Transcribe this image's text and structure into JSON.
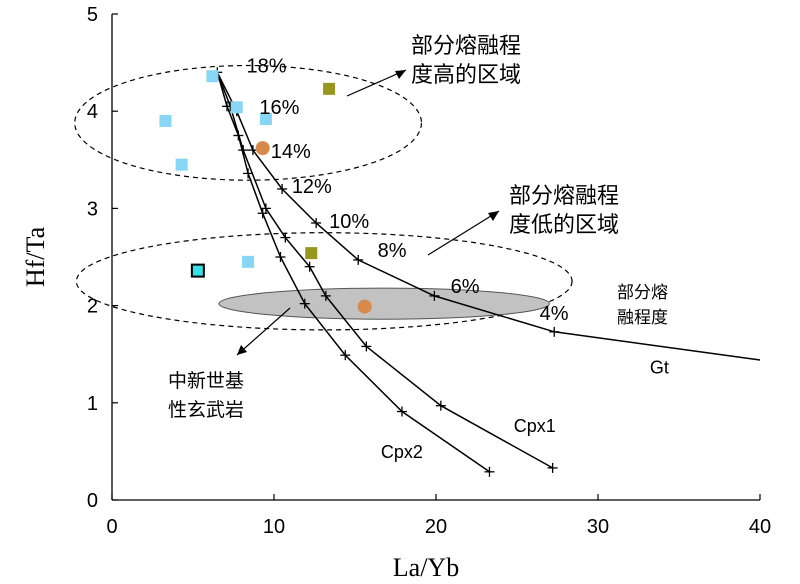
{
  "chart_data": {
    "type": "line",
    "xlabel": "La/Yb",
    "ylabel": "Hf/Ta",
    "xlim": [
      0,
      40
    ],
    "ylim": [
      0,
      5
    ],
    "xticks": [
      0,
      10,
      20,
      30,
      40
    ],
    "yticks": [
      0,
      1,
      2,
      3,
      4,
      5
    ],
    "x_tick_labels": [
      "0",
      "10",
      "20",
      "30",
      "40"
    ],
    "y_tick_labels": [
      "0",
      "1",
      "2",
      "3",
      "4",
      "5"
    ],
    "series": [
      {
        "name": "Gt",
        "points": [
          [
            6.5,
            4.4
          ],
          [
            7.7,
            4.0
          ],
          [
            8.7,
            3.6
          ],
          [
            10.5,
            3.2
          ],
          [
            12.6,
            2.85
          ],
          [
            15.2,
            2.47
          ],
          [
            19.9,
            2.1
          ],
          [
            27.3,
            1.73
          ],
          [
            40,
            1.44
          ]
        ]
      },
      {
        "name": "Cpx1",
        "points": [
          [
            6.5,
            4.4
          ],
          [
            7.3,
            4.05
          ],
          [
            8.1,
            3.6
          ],
          [
            9.5,
            3.0
          ],
          [
            10.7,
            2.7
          ],
          [
            12.2,
            2.4
          ],
          [
            13.2,
            2.1
          ],
          [
            15.7,
            1.58
          ],
          [
            20.3,
            0.97
          ],
          [
            27.2,
            0.33
          ]
        ]
      },
      {
        "name": "Cpx2",
        "points": [
          [
            6.5,
            4.4
          ],
          [
            7.1,
            4.05
          ],
          [
            7.8,
            3.75
          ],
          [
            8.4,
            3.36
          ],
          [
            9.3,
            2.95
          ],
          [
            10.4,
            2.5
          ],
          [
            11.9,
            2.02
          ],
          [
            14.4,
            1.49
          ],
          [
            17.9,
            0.91
          ],
          [
            23.3,
            0.29
          ]
        ]
      }
    ],
    "crosses": [
      [
        6.5,
        4.4
      ],
      [
        7.7,
        4.0
      ],
      [
        8.7,
        3.6
      ],
      [
        10.5,
        3.2
      ],
      [
        12.6,
        2.85
      ],
      [
        15.2,
        2.47
      ],
      [
        19.9,
        2.1
      ],
      [
        27.3,
        1.73
      ],
      [
        7.3,
        4.05
      ],
      [
        8.1,
        3.6
      ],
      [
        9.5,
        3.0
      ],
      [
        10.7,
        2.7
      ],
      [
        12.2,
        2.4
      ],
      [
        13.2,
        2.1
      ],
      [
        15.7,
        1.58
      ],
      [
        20.3,
        0.97
      ],
      [
        27.2,
        0.33
      ],
      [
        7.1,
        4.05
      ],
      [
        7.8,
        3.75
      ],
      [
        8.4,
        3.36
      ],
      [
        9.3,
        2.95
      ],
      [
        10.4,
        2.5
      ],
      [
        11.9,
        2.02
      ],
      [
        14.4,
        1.49
      ],
      [
        17.9,
        0.91
      ],
      [
        23.3,
        0.29
      ]
    ],
    "percent_labels": [
      {
        "text": "18%",
        "x": 8.3,
        "y": 4.4
      },
      {
        "text": "16%",
        "x": 9.1,
        "y": 3.97
      },
      {
        "text": "14%",
        "x": 9.8,
        "y": 3.52
      },
      {
        "text": "12%",
        "x": 11.1,
        "y": 3.16
      },
      {
        "text": "10%",
        "x": 13.4,
        "y": 2.8
      },
      {
        "text": "8%",
        "x": 16.4,
        "y": 2.5
      },
      {
        "text": "6%",
        "x": 20.9,
        "y": 2.13
      },
      {
        "text": "4%",
        "x": 26.4,
        "y": 1.85
      }
    ],
    "curve_labels": [
      {
        "text": "Gt",
        "x": 33.2,
        "y": 1.3
      },
      {
        "text": "Cpx1",
        "x": 24.8,
        "y": 0.7
      },
      {
        "text": "Cpx2",
        "x": 16.6,
        "y": 0.43
      }
    ],
    "samples": [
      {
        "shape": "square",
        "color": "#87d6f3",
        "x": 6.2,
        "y": 4.36
      },
      {
        "shape": "square",
        "color": "#87d6f3",
        "x": 7.7,
        "y": 4.04
      },
      {
        "shape": "square",
        "color": "#87d6f3",
        "x": 9.5,
        "y": 3.92
      },
      {
        "shape": "square",
        "color": "#87d6f3",
        "x": 3.3,
        "y": 3.9
      },
      {
        "shape": "square",
        "color": "#87d6f3",
        "x": 4.3,
        "y": 3.45
      },
      {
        "shape": "square",
        "color": "#87d6f3",
        "x": 8.4,
        "y": 2.45
      },
      {
        "shape": "square",
        "color": "#36e0e6",
        "x": 5.3,
        "y": 2.36,
        "outlined": true
      },
      {
        "shape": "square",
        "color": "#979720",
        "x": 13.4,
        "y": 4.23
      },
      {
        "shape": "square",
        "color": "#979720",
        "x": 12.3,
        "y": 2.54
      },
      {
        "shape": "circle",
        "color": "#d88a4c",
        "x": 9.3,
        "y": 3.62
      },
      {
        "shape": "circle",
        "color": "#d88a4c",
        "x": 15.6,
        "y": 1.99
      }
    ],
    "regions": [
      {
        "kind": "dashed-ellipse",
        "cx": 8.4,
        "cy": 3.88,
        "rx": 10.7,
        "ry": 0.59
      },
      {
        "kind": "dashed-ellipse",
        "cx": 13.1,
        "cy": 2.25,
        "rx": 15.3,
        "ry": 0.5
      },
      {
        "kind": "shaded-field",
        "color": "#c2c2c2",
        "cx": 16.8,
        "cy": 2.02,
        "rx": 10.2,
        "ry": 0.16
      }
    ],
    "annotations": {
      "high_melt_l1": "部分熔融程",
      "high_melt_l2": "度高的区域",
      "low_melt_l1": "部分熔融程",
      "low_melt_l2": "度低的区域",
      "basalt_l1": "中新世基",
      "basalt_l2": "性玄武岩",
      "melt_degree_l1": "部分熔",
      "melt_degree_l2": "融程度"
    }
  }
}
